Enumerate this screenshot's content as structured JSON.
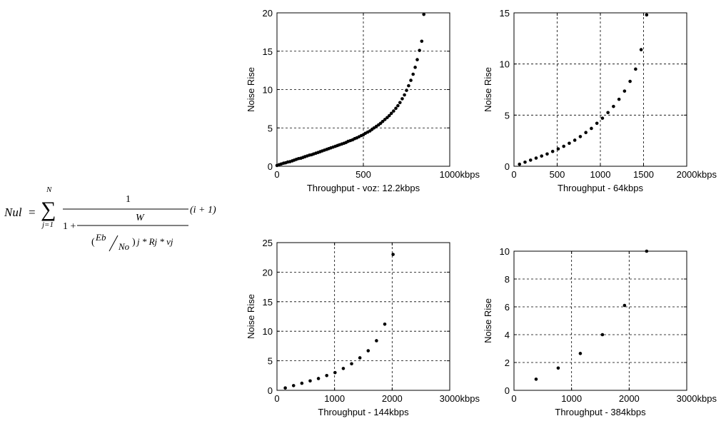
{
  "formula": {
    "lhs": "Nul",
    "eq": "=",
    "sum_upper": "N",
    "sum_lower": "j=1",
    "one": "1",
    "one_plus": "1 +",
    "W": "W",
    "eb": "Eb",
    "no": "No",
    "open_paren": "(",
    "close_paren": ")",
    "rest": "j * Rj * vj",
    "tail": "(i + 1)"
  },
  "chart_data": [
    {
      "type": "scatter",
      "title": "",
      "xlabel": "Throughput - voz: 12.2kbps",
      "ylabel": "Noise Rise",
      "xlim": [
        0,
        1000
      ],
      "ylim": [
        0,
        20
      ],
      "xticks": [
        "0",
        "500",
        "1000kbps"
      ],
      "yticks": [
        "0",
        "5",
        "10",
        "15",
        "20"
      ],
      "grid": true,
      "points": [
        [
          0,
          0.1
        ],
        [
          12,
          0.2
        ],
        [
          25,
          0.3
        ],
        [
          38,
          0.4
        ],
        [
          50,
          0.45
        ],
        [
          62,
          0.55
        ],
        [
          75,
          0.6
        ],
        [
          88,
          0.7
        ],
        [
          100,
          0.8
        ],
        [
          112,
          0.9
        ],
        [
          125,
          1.0
        ],
        [
          138,
          1.05
        ],
        [
          150,
          1.15
        ],
        [
          162,
          1.25
        ],
        [
          175,
          1.35
        ],
        [
          188,
          1.45
        ],
        [
          200,
          1.5
        ],
        [
          212,
          1.6
        ],
        [
          225,
          1.7
        ],
        [
          238,
          1.8
        ],
        [
          250,
          1.9
        ],
        [
          262,
          2.0
        ],
        [
          275,
          2.1
        ],
        [
          288,
          2.2
        ],
        [
          300,
          2.3
        ],
        [
          312,
          2.4
        ],
        [
          325,
          2.5
        ],
        [
          338,
          2.6
        ],
        [
          350,
          2.7
        ],
        [
          362,
          2.8
        ],
        [
          375,
          2.9
        ],
        [
          388,
          3.0
        ],
        [
          400,
          3.1
        ],
        [
          412,
          3.25
        ],
        [
          425,
          3.35
        ],
        [
          438,
          3.45
        ],
        [
          450,
          3.6
        ],
        [
          462,
          3.7
        ],
        [
          475,
          3.85
        ],
        [
          488,
          4.0
        ],
        [
          500,
          4.1
        ],
        [
          512,
          4.3
        ],
        [
          525,
          4.45
        ],
        [
          538,
          4.6
        ],
        [
          550,
          4.8
        ],
        [
          562,
          5.0
        ],
        [
          575,
          5.2
        ],
        [
          588,
          5.4
        ],
        [
          600,
          5.6
        ],
        [
          612,
          5.85
        ],
        [
          625,
          6.1
        ],
        [
          638,
          6.35
        ],
        [
          650,
          6.6
        ],
        [
          662,
          6.9
        ],
        [
          675,
          7.2
        ],
        [
          688,
          7.55
        ],
        [
          700,
          7.9
        ],
        [
          712,
          8.3
        ],
        [
          725,
          8.8
        ],
        [
          738,
          9.3
        ],
        [
          750,
          9.9
        ],
        [
          762,
          10.5
        ],
        [
          775,
          11.2
        ],
        [
          788,
          12.0
        ],
        [
          800,
          12.9
        ],
        [
          812,
          13.9
        ],
        [
          825,
          15.1
        ],
        [
          838,
          16.3
        ],
        [
          850,
          19.8
        ]
      ]
    },
    {
      "type": "scatter",
      "title": "",
      "xlabel": "Throughput - 64kbps",
      "ylabel": "Noise Rise",
      "xlim": [
        0,
        2000
      ],
      "ylim": [
        0,
        15
      ],
      "xticks": [
        "0",
        "500",
        "1000",
        "1500",
        "2000kbps"
      ],
      "yticks": [
        "0",
        "5",
        "10",
        "15"
      ],
      "grid": true,
      "points": [
        [
          64,
          0.2
        ],
        [
          128,
          0.4
        ],
        [
          192,
          0.6
        ],
        [
          256,
          0.8
        ],
        [
          320,
          1.0
        ],
        [
          384,
          1.2
        ],
        [
          448,
          1.45
        ],
        [
          512,
          1.7
        ],
        [
          576,
          1.95
        ],
        [
          640,
          2.25
        ],
        [
          704,
          2.55
        ],
        [
          768,
          2.9
        ],
        [
          832,
          3.3
        ],
        [
          896,
          3.7
        ],
        [
          960,
          4.2
        ],
        [
          1024,
          4.7
        ],
        [
          1088,
          5.25
        ],
        [
          1152,
          5.85
        ],
        [
          1216,
          6.55
        ],
        [
          1280,
          7.35
        ],
        [
          1344,
          8.3
        ],
        [
          1408,
          9.5
        ],
        [
          1472,
          11.4
        ],
        [
          1536,
          14.8
        ]
      ]
    },
    {
      "type": "scatter",
      "title": "",
      "xlabel": "Throughput - 144kbps",
      "ylabel": "Noise Rise",
      "xlim": [
        0,
        3000
      ],
      "ylim": [
        0,
        25
      ],
      "xticks": [
        "0",
        "1000",
        "2000",
        "3000kbps"
      ],
      "yticks": [
        "0",
        "5",
        "10",
        "15",
        "20",
        "25"
      ],
      "grid": true,
      "points": [
        [
          144,
          0.4
        ],
        [
          288,
          0.8
        ],
        [
          432,
          1.2
        ],
        [
          576,
          1.6
        ],
        [
          720,
          2.0
        ],
        [
          864,
          2.5
        ],
        [
          1008,
          3.0
        ],
        [
          1152,
          3.7
        ],
        [
          1296,
          4.5
        ],
        [
          1440,
          5.5
        ],
        [
          1584,
          6.7
        ],
        [
          1728,
          8.4
        ],
        [
          1872,
          11.2
        ],
        [
          2016,
          23.0
        ]
      ]
    },
    {
      "type": "scatter",
      "title": "",
      "xlabel": "Throughput - 384kbps",
      "ylabel": "Noise Rise",
      "xlim": [
        0,
        3000
      ],
      "ylim": [
        0,
        10
      ],
      "xticks": [
        "0",
        "1000",
        "2000",
        "3000kbps"
      ],
      "yticks": [
        "0",
        "2",
        "4",
        "6",
        "8",
        "10"
      ],
      "grid": true,
      "points": [
        [
          384,
          0.8
        ],
        [
          768,
          1.6
        ],
        [
          1152,
          2.65
        ],
        [
          1536,
          4.0
        ],
        [
          1920,
          6.1
        ],
        [
          2304,
          10.0
        ]
      ]
    }
  ]
}
